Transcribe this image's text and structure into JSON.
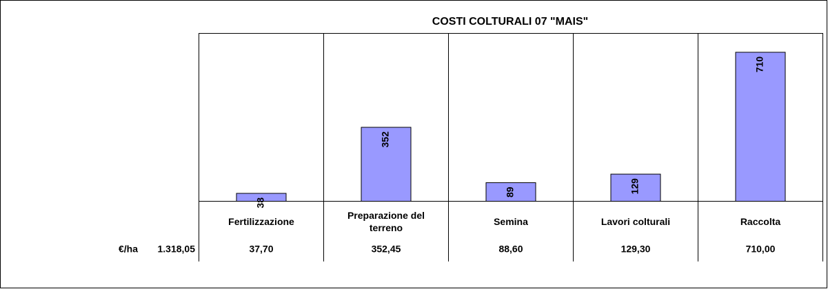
{
  "chart_data": {
    "type": "bar",
    "title": "COSTI COLTURALI 07 \"MAIS\"",
    "categories": [
      "Fertilizzazione",
      "Preparazione del terreno",
      "Semina",
      "Lavori colturali",
      "Raccolta"
    ],
    "values": [
      37.7,
      352.45,
      88.6,
      129.3,
      710.0
    ],
    "value_labels": [
      "38",
      "352",
      "89",
      "129",
      "710"
    ],
    "color": "#9999ff",
    "ylim": [
      0,
      800
    ],
    "data_table": {
      "unit": "€/ha",
      "total": "1.318,05",
      "cells": [
        "37,70",
        "352,45",
        "88,60",
        "129,30",
        "710,00"
      ]
    }
  }
}
